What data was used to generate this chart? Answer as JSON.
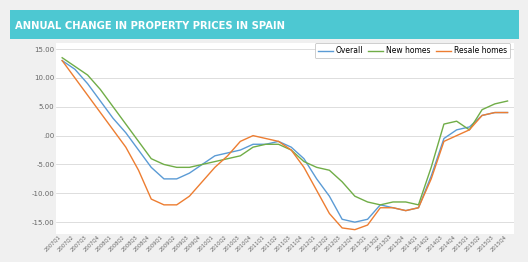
{
  "title": "ANNUAL CHANGE IN PROPERTY PRICES IN SPAIN",
  "title_bg_color": "#4dc8d2",
  "title_text_color": "#ffffff",
  "bg_color": "#f0f0f0",
  "plot_bg_color": "#ffffff",
  "grid_color": "#d0d0d0",
  "ylim": [
    -17,
    16
  ],
  "yticks": [
    -15,
    -10,
    -5,
    0,
    5,
    10,
    15
  ],
  "ytick_labels": [
    "-15.00",
    "-10.00",
    "-5.00",
    ".00",
    "5.00",
    "10.00",
    "15.00"
  ],
  "legend": [
    "Overall",
    "New homes",
    "Resale homes"
  ],
  "colors": {
    "overall": "#5b9bd5",
    "new_homes": "#70ad47",
    "resale": "#ed7d31"
  },
  "x_labels": [
    "2007Q1",
    "2007Q2",
    "2007Q3",
    "2007Q4",
    "2008Q1",
    "2008Q2",
    "2008Q3",
    "2008Q4",
    "2009Q1",
    "2009Q2",
    "2009Q3",
    "2009Q4",
    "2010Q1",
    "2010Q2",
    "2010Q3",
    "2010Q4",
    "2011Q1",
    "2011Q2",
    "2011Q3",
    "2011Q4",
    "2012Q1",
    "2012Q2",
    "2012Q3",
    "2012Q4",
    "2013Q1",
    "2013Q2",
    "2013Q3",
    "2013Q4",
    "2014Q1",
    "2014Q2",
    "2014Q3",
    "2014Q4",
    "2015Q1",
    "2015Q2",
    "2015Q3",
    "2015Q4"
  ],
  "overall": [
    13.0,
    11.5,
    9.0,
    6.0,
    3.0,
    0.5,
    -2.5,
    -5.5,
    -7.5,
    -7.5,
    -6.5,
    -5.0,
    -3.5,
    -3.0,
    -2.5,
    -1.5,
    -1.5,
    -1.0,
    -2.0,
    -4.0,
    -7.5,
    -10.5,
    -14.5,
    -15.0,
    -14.5,
    -12.0,
    -12.5,
    -13.0,
    -12.5,
    -7.0,
    -0.5,
    1.0,
    1.5,
    3.5,
    4.0,
    4.0
  ],
  "new_homes": [
    13.5,
    12.0,
    10.5,
    8.0,
    5.0,
    2.0,
    -1.0,
    -4.0,
    -5.0,
    -5.5,
    -5.5,
    -5.0,
    -4.5,
    -4.0,
    -3.5,
    -2.0,
    -1.5,
    -1.5,
    -2.5,
    -4.5,
    -5.5,
    -6.0,
    -8.0,
    -10.5,
    -11.5,
    -12.0,
    -11.5,
    -11.5,
    -12.0,
    -5.5,
    2.0,
    2.5,
    1.0,
    4.5,
    5.5,
    6.0
  ],
  "resale": [
    13.0,
    10.0,
    7.0,
    4.0,
    1.0,
    -2.0,
    -6.0,
    -11.0,
    -12.0,
    -12.0,
    -10.5,
    -8.0,
    -5.5,
    -3.5,
    -1.0,
    0.0,
    -0.5,
    -1.0,
    -2.5,
    -5.5,
    -9.5,
    -13.5,
    -16.0,
    -16.3,
    -15.5,
    -12.5,
    -12.5,
    -13.0,
    -12.5,
    -7.5,
    -1.0,
    0.0,
    1.0,
    3.5,
    4.0,
    4.0
  ]
}
